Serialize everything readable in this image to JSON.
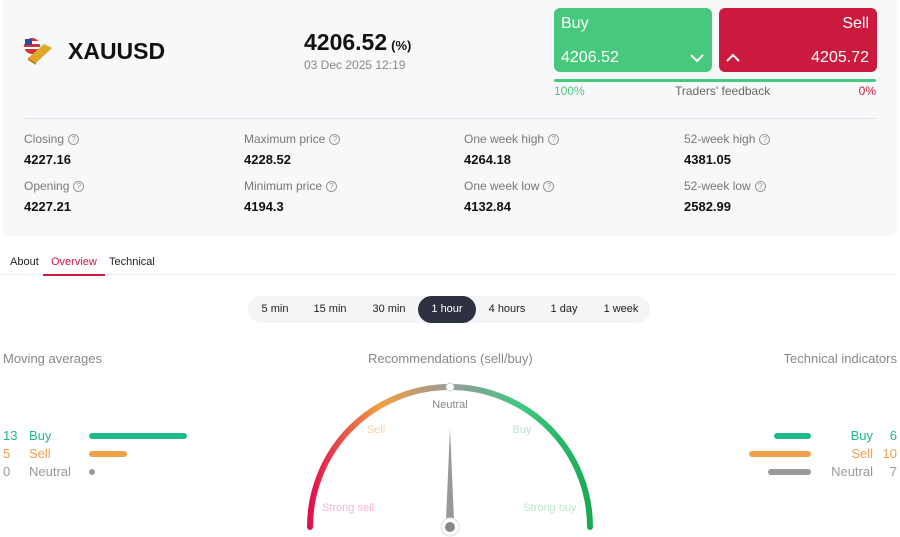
{
  "instrument": {
    "symbol": "XAUUSD",
    "icon": "gold-bar-us-flag-icon",
    "price": "4206.52",
    "change": "(%)",
    "datetime": "03 Dec 2025 12:19"
  },
  "trade": {
    "buy_label": "Buy",
    "buy_price": "4206.52",
    "sell_label": "Sell",
    "sell_price": "4205.72",
    "feedback_label": "Traders' feedback",
    "buy_pct": "100%",
    "sell_pct": "0%",
    "buy_fraction": 1.0
  },
  "stats": [
    {
      "label": "Closing",
      "value": "4227.16"
    },
    {
      "label": "Maximum price",
      "value": "4228.52"
    },
    {
      "label": "One week high",
      "value": "4264.18"
    },
    {
      "label": "52-week high",
      "value": "4381.05"
    },
    {
      "label": "Opening",
      "value": "4227.21"
    },
    {
      "label": "Minimum price",
      "value": "4194.3"
    },
    {
      "label": "One week low",
      "value": "4132.84"
    },
    {
      "label": "52-week low",
      "value": "2582.99"
    }
  ],
  "tabs": [
    {
      "label": "About"
    },
    {
      "label": "Overview",
      "active": true
    },
    {
      "label": "Technical"
    }
  ],
  "timeframes": [
    {
      "label": "5 min"
    },
    {
      "label": "15 min"
    },
    {
      "label": "30 min"
    },
    {
      "label": "1 hour",
      "active": true
    },
    {
      "label": "4 hours"
    },
    {
      "label": "1 day"
    },
    {
      "label": "1 week"
    }
  ],
  "moving_averages": {
    "title": "Moving averages",
    "items": [
      {
        "count": "13",
        "label": "Buy",
        "value": 13
      },
      {
        "count": "5",
        "label": "Sell",
        "value": 5
      },
      {
        "count": "0",
        "label": "Neutral",
        "value": 0
      }
    ]
  },
  "recommendations": {
    "title": "Recommendations (sell/buy)",
    "labels": {
      "strong_sell": "Strong sell",
      "sell": "Sell",
      "neutral": "Neutral",
      "buy": "Buy",
      "strong_buy": "Strong buy"
    },
    "needle": "Neutral"
  },
  "technical_indicators": {
    "title": "Technical indicators",
    "items": [
      {
        "count": "6",
        "label": "Buy",
        "value": 6
      },
      {
        "count": "10",
        "label": "Sell",
        "value": 10
      },
      {
        "count": "7",
        "label": "Neutral",
        "value": 7
      }
    ]
  },
  "colors": {
    "buy": "#47c97d",
    "sell": "#cc1a3e",
    "ma_buy": "#1cb98a",
    "ma_sell": "#f0a14a",
    "neutral": "#999999"
  }
}
